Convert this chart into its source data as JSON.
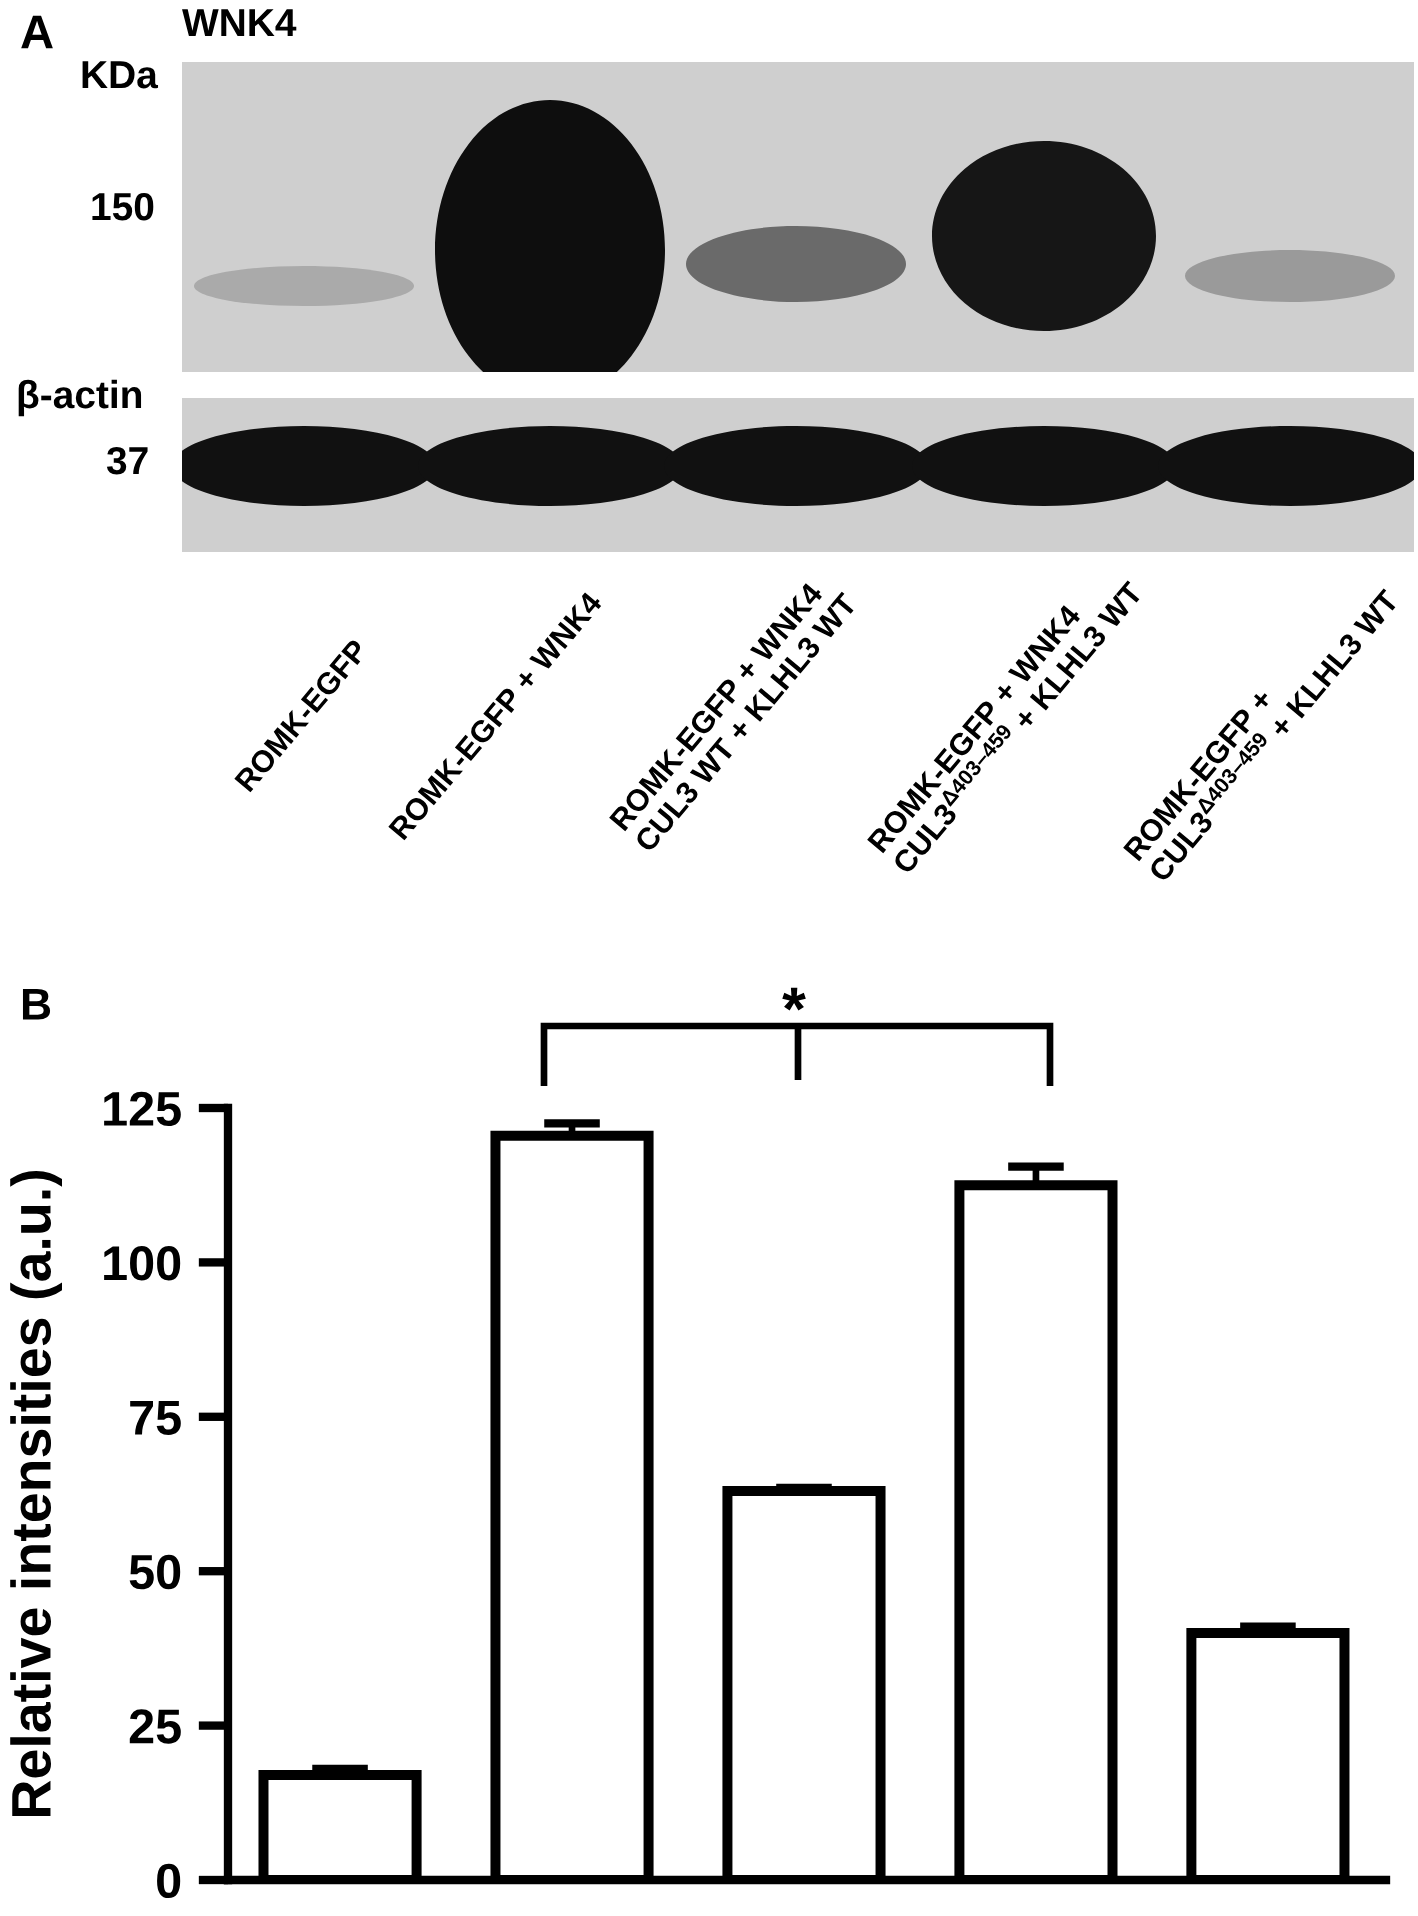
{
  "chart_data": [
    {
      "type": "other",
      "annotations": [
        "A",
        "WNK4",
        "KDa",
        "150",
        "β-actin",
        "37",
        "ROMK-EGFP",
        "ROMK-EGFP + WNK4",
        "ROMK-EGFP + WNK4\nCUL3 WT + KLHL3 WT",
        "ROMK-EGFP + WNK4\nCUL3$^{Δ403–459}$ + KLHL3 WT",
        "ROMK-EGFP +\nCUL3$^{Δ403–459}$ + KLHL3 WT"
      ]
    },
    {
      "type": "bar",
      "categories": [
        null,
        null,
        null,
        null,
        null
      ],
      "values": [
        17,
        120.5,
        63,
        112.5,
        40
      ],
      "errors": [
        1,
        2,
        0.5,
        3,
        1
      ],
      "color": "#ffffff",
      "ylabel": "Relative intensities (a.u.)",
      "ylim": [
        0,
        125
      ],
      "yticks": [
        0,
        25,
        50,
        75,
        100,
        125
      ],
      "annotations": [
        "B",
        "*"
      ]
    }
  ]
}
